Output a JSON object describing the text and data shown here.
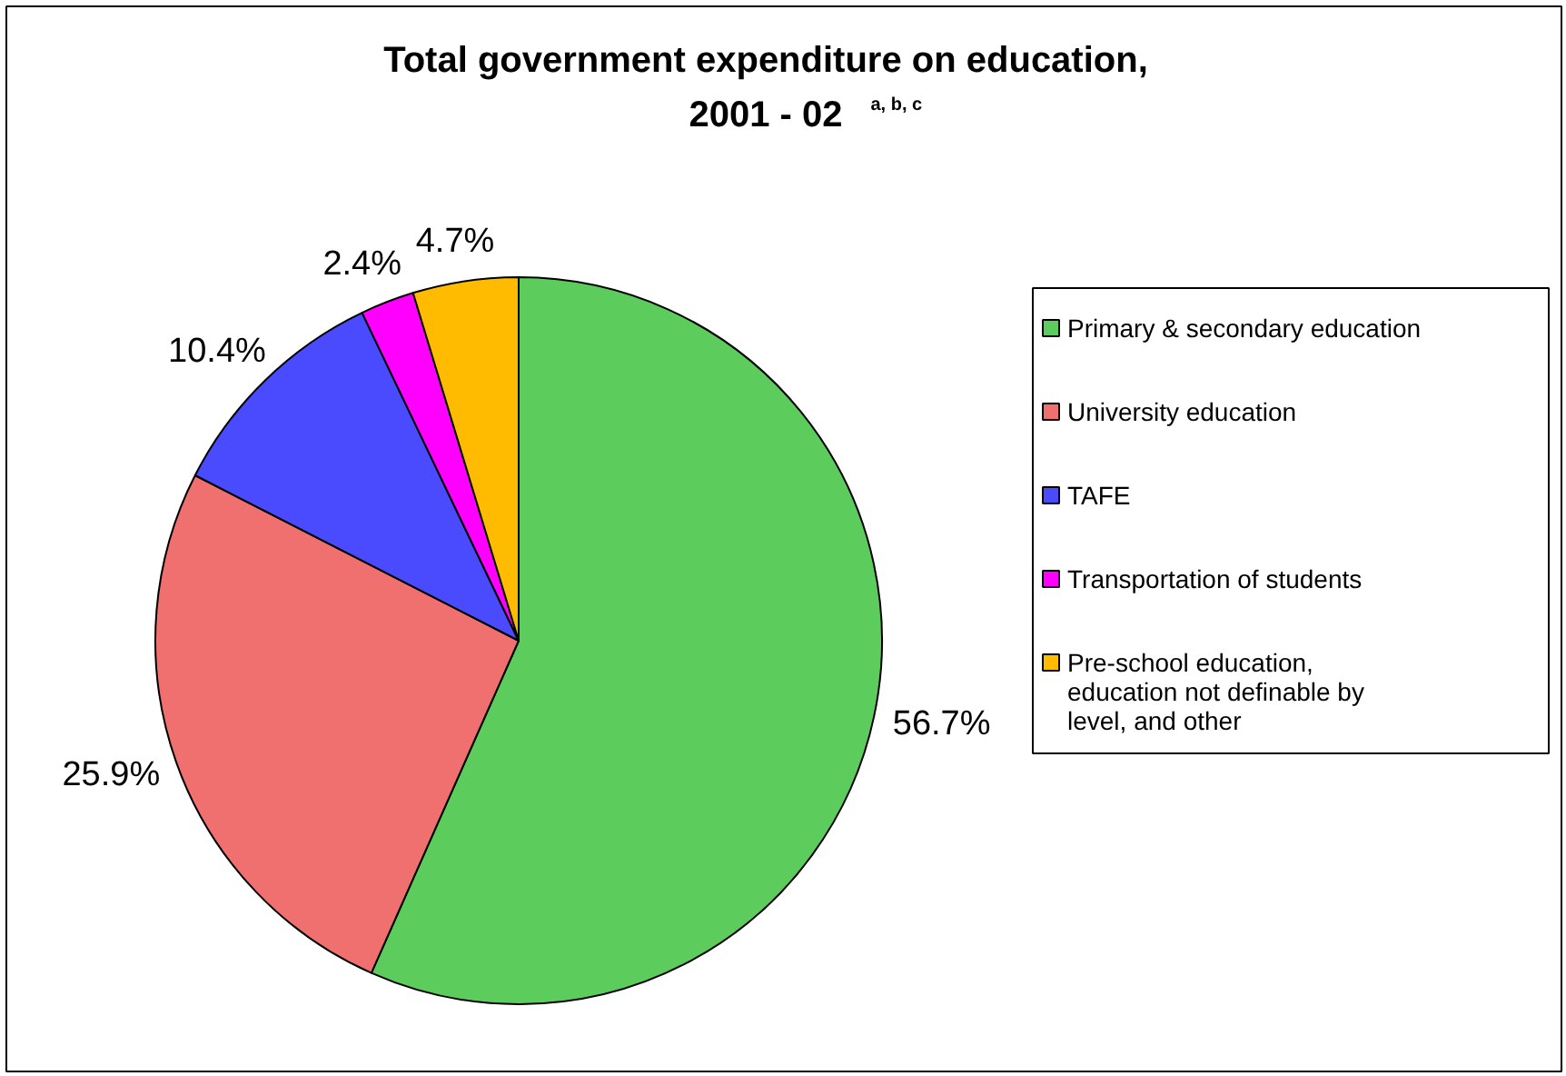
{
  "chart_data": {
    "type": "pie",
    "title": "Total government expenditure on education, 2001 - 02 $^{a, b, c}$",
    "categories": [
      "Primary & secondary education",
      "University education",
      "TAFE",
      "Transportation of students",
      "Pre-school education, education not definable by level, and other"
    ],
    "values": [
      56.7,
      25.9,
      10.4,
      2.4,
      4.7
    ],
    "colors": [
      "#5ccc5c",
      "#f07070",
      "#4a4aff",
      "#ff00ff",
      "#ffbb00"
    ],
    "value_labels": [
      "56.7%",
      "25.9%",
      "10.4%",
      "2.4%",
      "4.7%"
    ],
    "legend": "right"
  }
}
